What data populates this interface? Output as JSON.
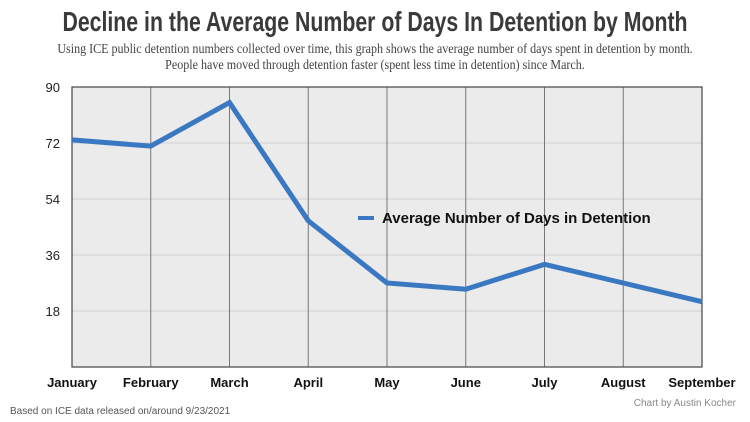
{
  "chart_data": {
    "type": "line",
    "title": "Decline in the Average Number of Days In Detention by Month",
    "subtitle": "Using ICE public detention numbers collected over time, this graph shows the average number of days spent in detention by month. People have moved through detention faster (spent less time in detention) since March.",
    "categories": [
      "January",
      "February",
      "March",
      "April",
      "May",
      "June",
      "July",
      "August",
      "September"
    ],
    "series": [
      {
        "name": "Average Number of Days in Detention",
        "values": [
          73,
          71,
          85,
          47,
          27,
          25,
          33,
          27,
          21
        ],
        "color": "#3a78c2"
      }
    ],
    "ylim": [
      0,
      90
    ],
    "yticks": [
      18,
      36,
      54,
      72,
      90
    ],
    "grid": true,
    "legend": "center-right",
    "background": "#ebebeb"
  },
  "footer": {
    "source": "Based on ICE data released on/around 9/23/2021",
    "credit": "Chart by Austin Kocher"
  }
}
